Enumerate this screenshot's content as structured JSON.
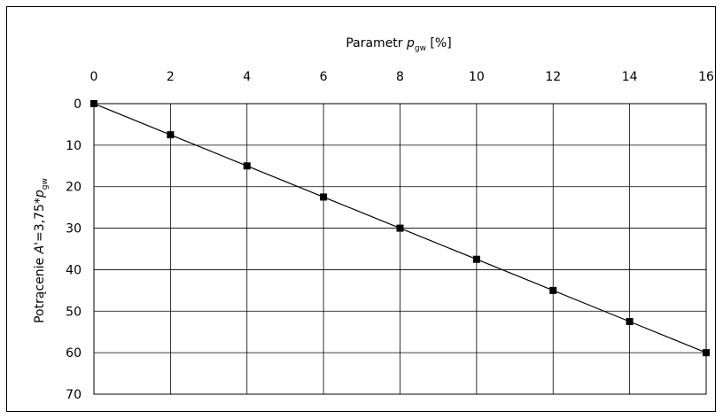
{
  "chart_data": {
    "type": "line",
    "x_axis": {
      "label_main": "Parametr ",
      "label_var": "p",
      "label_sub": "gw",
      "label_tail": " [%]",
      "ticks": [
        0,
        2,
        4,
        6,
        8,
        10,
        12,
        14,
        16
      ],
      "range": [
        0,
        16
      ],
      "position": "top"
    },
    "y_axis": {
      "label_main": "Potrącenie ",
      "label_var_a": "A",
      "label_mid": "'=3,75*",
      "label_var_p": "p",
      "label_sub": "gw",
      "ticks": [
        0,
        10,
        20,
        30,
        40,
        50,
        60,
        70
      ],
      "range": [
        0,
        70
      ],
      "inverted": true
    },
    "grid": true,
    "series": [
      {
        "x": [
          0,
          2,
          4,
          6,
          8,
          10,
          12,
          14,
          16
        ],
        "y": [
          0,
          7.5,
          15,
          22.5,
          30,
          37.5,
          45,
          52.5,
          60
        ]
      }
    ],
    "colors": {
      "line": "#000000",
      "marker": "#000000",
      "grid": "#000000"
    }
  }
}
